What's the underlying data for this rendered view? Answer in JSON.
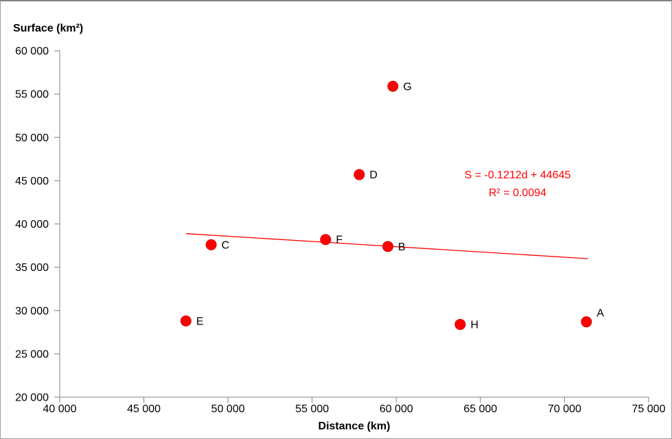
{
  "chart_data": {
    "type": "scatter",
    "title": "",
    "y_axis_title": "Surface (km²)",
    "x_axis_title": "Distance (km)",
    "xlim": [
      40000,
      75000
    ],
    "ylim": [
      20000,
      60000
    ],
    "grid": false,
    "legend": false,
    "x_ticks": [
      {
        "value": 40000,
        "label": "40 000"
      },
      {
        "value": 45000,
        "label": "45 000"
      },
      {
        "value": 50000,
        "label": "50 000"
      },
      {
        "value": 55000,
        "label": "55 000"
      },
      {
        "value": 60000,
        "label": "60 000"
      },
      {
        "value": 65000,
        "label": "65 000"
      },
      {
        "value": 70000,
        "label": "70 000"
      },
      {
        "value": 75000,
        "label": "75 000"
      }
    ],
    "y_ticks": [
      {
        "value": 60000,
        "label": "60 000"
      },
      {
        "value": 55000,
        "label": "55 000"
      },
      {
        "value": 50000,
        "label": "50 000"
      },
      {
        "value": 45000,
        "label": "45 000"
      },
      {
        "value": 40000,
        "label": "40 000"
      },
      {
        "value": 35000,
        "label": "35 000"
      },
      {
        "value": 30000,
        "label": "30 000"
      },
      {
        "value": 25000,
        "label": "25 000"
      },
      {
        "value": 20000,
        "label": "20 000"
      }
    ],
    "points": [
      {
        "label": "A",
        "x": 71300,
        "y": 28700,
        "label_dx": 15,
        "label_dy": -13
      },
      {
        "label": "B",
        "x": 59500,
        "y": 37400
      },
      {
        "label": "C",
        "x": 49000,
        "y": 37600
      },
      {
        "label": "D",
        "x": 57800,
        "y": 45700
      },
      {
        "label": "E",
        "x": 47500,
        "y": 28800
      },
      {
        "label": "F",
        "x": 55800,
        "y": 38200
      },
      {
        "label": "G",
        "x": 59800,
        "y": 55900
      },
      {
        "label": "H",
        "x": 63800,
        "y": 28400
      }
    ],
    "trendline": {
      "slope": -0.1212,
      "intercept": 44645,
      "x_start": 47500,
      "x_end": 71400,
      "equation_line1": "S = -0.1212d + 44645",
      "equation_line2": "R² = 0.0094"
    },
    "colors": {
      "point_fill": "#ff0000",
      "point_edge": "#d40000",
      "trendline": "#ff0000",
      "equation_text": "#ff0000",
      "axis": "#808080"
    },
    "marker_radius": 7.5
  }
}
